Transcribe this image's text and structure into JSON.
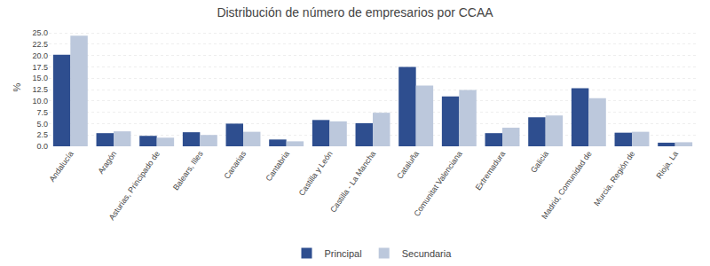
{
  "chart_data": {
    "type": "bar",
    "title": "Distribución de número de empresarios por CCAA",
    "categories": [
      "Andalucía",
      "Aragón",
      "Asturias, Principado de",
      "Balears, Illes",
      "Canarias",
      "Cantabria",
      "Castilla y León",
      "Castilla - La Mancha",
      "Cataluña",
      "Comunitat Valenciana",
      "Extremadura",
      "Galicia",
      "Madrid, Comunidad de",
      "Murcia, Región de",
      "Rioja, La"
    ],
    "series": [
      {
        "name": "Principal",
        "color": "#2E4E8F",
        "values": [
          20.2,
          2.9,
          2.3,
          3.1,
          5.0,
          1.5,
          5.8,
          5.1,
          17.5,
          11.0,
          2.9,
          6.4,
          12.8,
          3.0,
          0.8
        ]
      },
      {
        "name": "Secundaria",
        "color": "#BCC8DC",
        "values": [
          24.4,
          3.3,
          1.9,
          2.5,
          3.2,
          1.1,
          5.5,
          7.4,
          13.4,
          12.4,
          4.1,
          6.8,
          10.6,
          3.2,
          0.9
        ]
      }
    ],
    "ylabel": "%",
    "ylim": [
      0,
      26
    ],
    "yticks": [
      {
        "value": 0.0,
        "label": "0.0"
      },
      2.5,
      {
        "value": 5.0,
        "label": "5.0"
      },
      7.5,
      {
        "value": 10.0,
        "label": "10.0"
      },
      12.5,
      {
        "value": 15.0,
        "label": "15.0"
      },
      17.5,
      {
        "value": 20.0,
        "label": "20.0"
      },
      22.5,
      {
        "value": 25.0,
        "label": "25.0"
      }
    ],
    "grid": true,
    "legend": "bottom"
  }
}
